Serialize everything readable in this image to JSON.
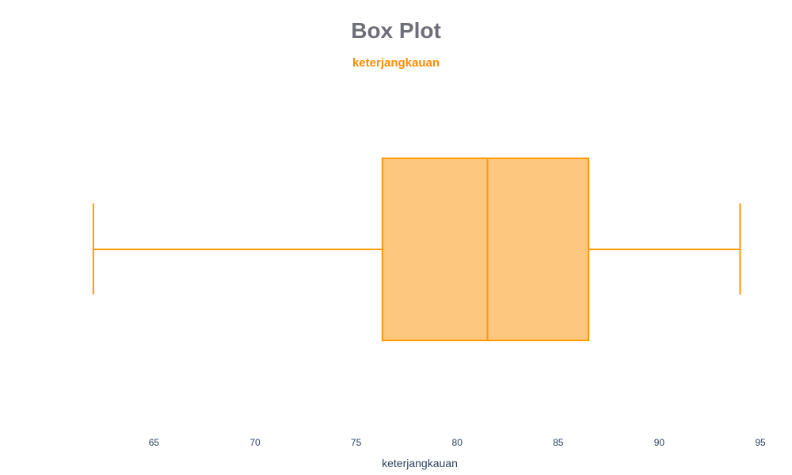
{
  "chart_data": {
    "type": "box",
    "title": "Box Plot",
    "subtitle": "keterjangkauan",
    "xlabel": "keterjangkauan",
    "ylabel": "",
    "orientation": "horizontal",
    "xlim": [
      61.3,
      95
    ],
    "xticks": [
      65,
      70,
      75,
      80,
      85,
      90,
      95
    ],
    "grid": false,
    "series": [
      {
        "min": 62,
        "q1": 76.3,
        "median": 81.5,
        "q3": 86.5,
        "max": 94
      }
    ]
  },
  "colors": {
    "title": "#6e6e78",
    "subtitle": "#ff8c00",
    "box_fill": "#fec77f",
    "box_line": "#ff9900",
    "text": "#2a3f5f"
  }
}
